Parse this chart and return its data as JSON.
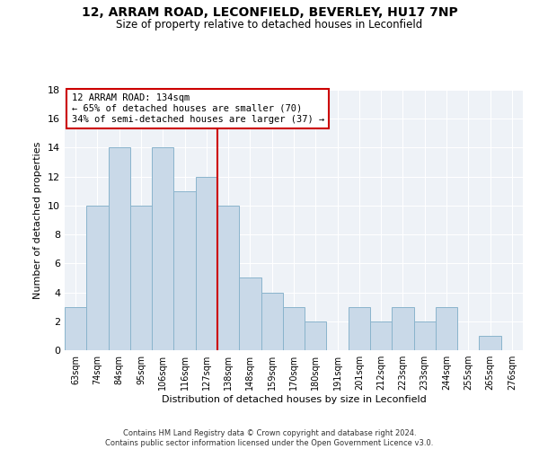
{
  "title1": "12, ARRAM ROAD, LECONFIELD, BEVERLEY, HU17 7NP",
  "title2": "Size of property relative to detached houses in Leconfield",
  "xlabel": "Distribution of detached houses by size in Leconfield",
  "ylabel": "Number of detached properties",
  "bins": [
    "63sqm",
    "74sqm",
    "84sqm",
    "95sqm",
    "106sqm",
    "116sqm",
    "127sqm",
    "138sqm",
    "148sqm",
    "159sqm",
    "170sqm",
    "180sqm",
    "191sqm",
    "201sqm",
    "212sqm",
    "223sqm",
    "233sqm",
    "244sqm",
    "255sqm",
    "265sqm",
    "276sqm"
  ],
  "values": [
    3,
    10,
    14,
    10,
    14,
    11,
    12,
    10,
    5,
    4,
    3,
    2,
    0,
    3,
    2,
    3,
    2,
    3,
    0,
    1,
    0
  ],
  "bar_color": "#c9d9e8",
  "bar_edge_color": "#8ab4cc",
  "marker_label": "12 ARRAM ROAD: 134sqm",
  "annotation_line1": "← 65% of detached houses are smaller (70)",
  "annotation_line2": "34% of semi-detached houses are larger (37) →",
  "vline_color": "#cc0000",
  "box_edge_color": "#cc0000",
  "ylim": [
    0,
    18
  ],
  "yticks": [
    0,
    2,
    4,
    6,
    8,
    10,
    12,
    14,
    16,
    18
  ],
  "footnote1": "Contains HM Land Registry data © Crown copyright and database right 2024.",
  "footnote2": "Contains public sector information licensed under the Open Government Licence v3.0.",
  "bg_color": "#eef2f7"
}
